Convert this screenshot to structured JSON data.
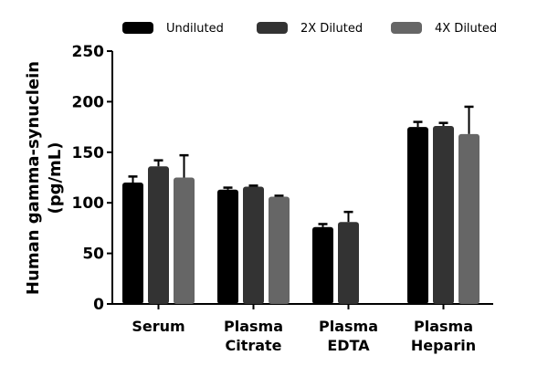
{
  "chart_data": {
    "type": "bar",
    "title": "",
    "xlabel": "",
    "ylabel": [
      "Human gamma-synuclein",
      "(pg/mL)"
    ],
    "ylim": [
      0,
      250
    ],
    "yticks": [
      "0",
      "50",
      "100",
      "150",
      "200",
      "250"
    ],
    "categories": [
      [
        "Serum"
      ],
      [
        "Plasma",
        "Citrate"
      ],
      [
        "Plasma",
        "EDTA"
      ],
      [
        "Plasma",
        "Heparin"
      ]
    ],
    "legend_position": "top",
    "grid": false,
    "series": [
      {
        "name": "Undiluted",
        "color": "#000000",
        "values": [
          120,
          113,
          76,
          175
        ],
        "error": [
          6,
          2,
          3,
          5
        ]
      },
      {
        "name": "2X Diluted",
        "color": "#333333",
        "values": [
          136,
          116,
          81,
          176
        ],
        "error": [
          6,
          1,
          10,
          3
        ]
      },
      {
        "name": "4X Diluted",
        "color": "#666666",
        "values": [
          125,
          106,
          null,
          168
        ],
        "error": [
          22,
          1,
          null,
          27
        ]
      }
    ]
  }
}
